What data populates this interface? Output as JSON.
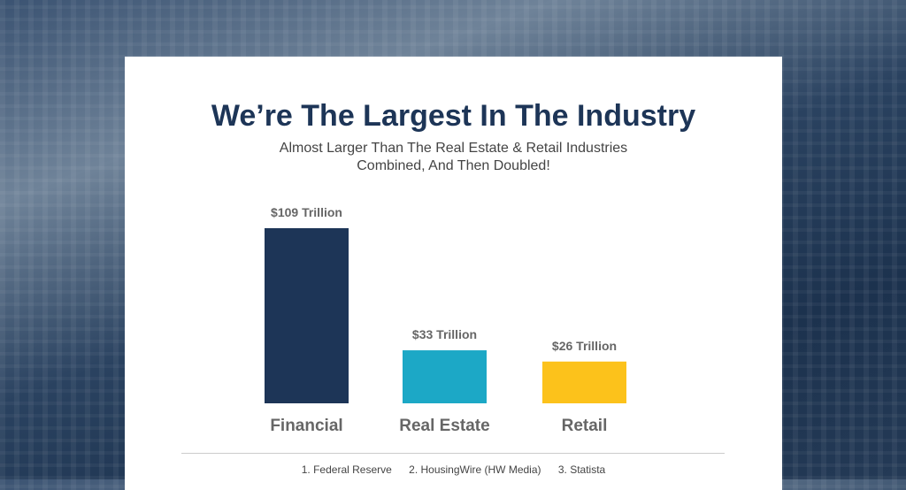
{
  "chart_data": {
    "type": "bar",
    "title": "We’re The Largest In The Industry",
    "subtitle_lines": [
      "Almost Larger Than The Real Estate & Retail Industries",
      "Combined, And Then Doubled!"
    ],
    "categories": [
      "Financial",
      "Real Estate",
      "Retail"
    ],
    "values": [
      109,
      33,
      26
    ],
    "data_labels": [
      "$109 Trillion",
      "$33 Trillion",
      "$26 Trillion"
    ],
    "unit": "Trillion USD",
    "colors": [
      "#1d3557",
      "#1ca8c6",
      "#fcc21b"
    ],
    "ylim": [
      0,
      109
    ],
    "grid": false,
    "legend": "none"
  },
  "sources": [
    "1. Federal Reserve",
    "2. HousingWire (HW Media)",
    "3. Statista"
  ]
}
